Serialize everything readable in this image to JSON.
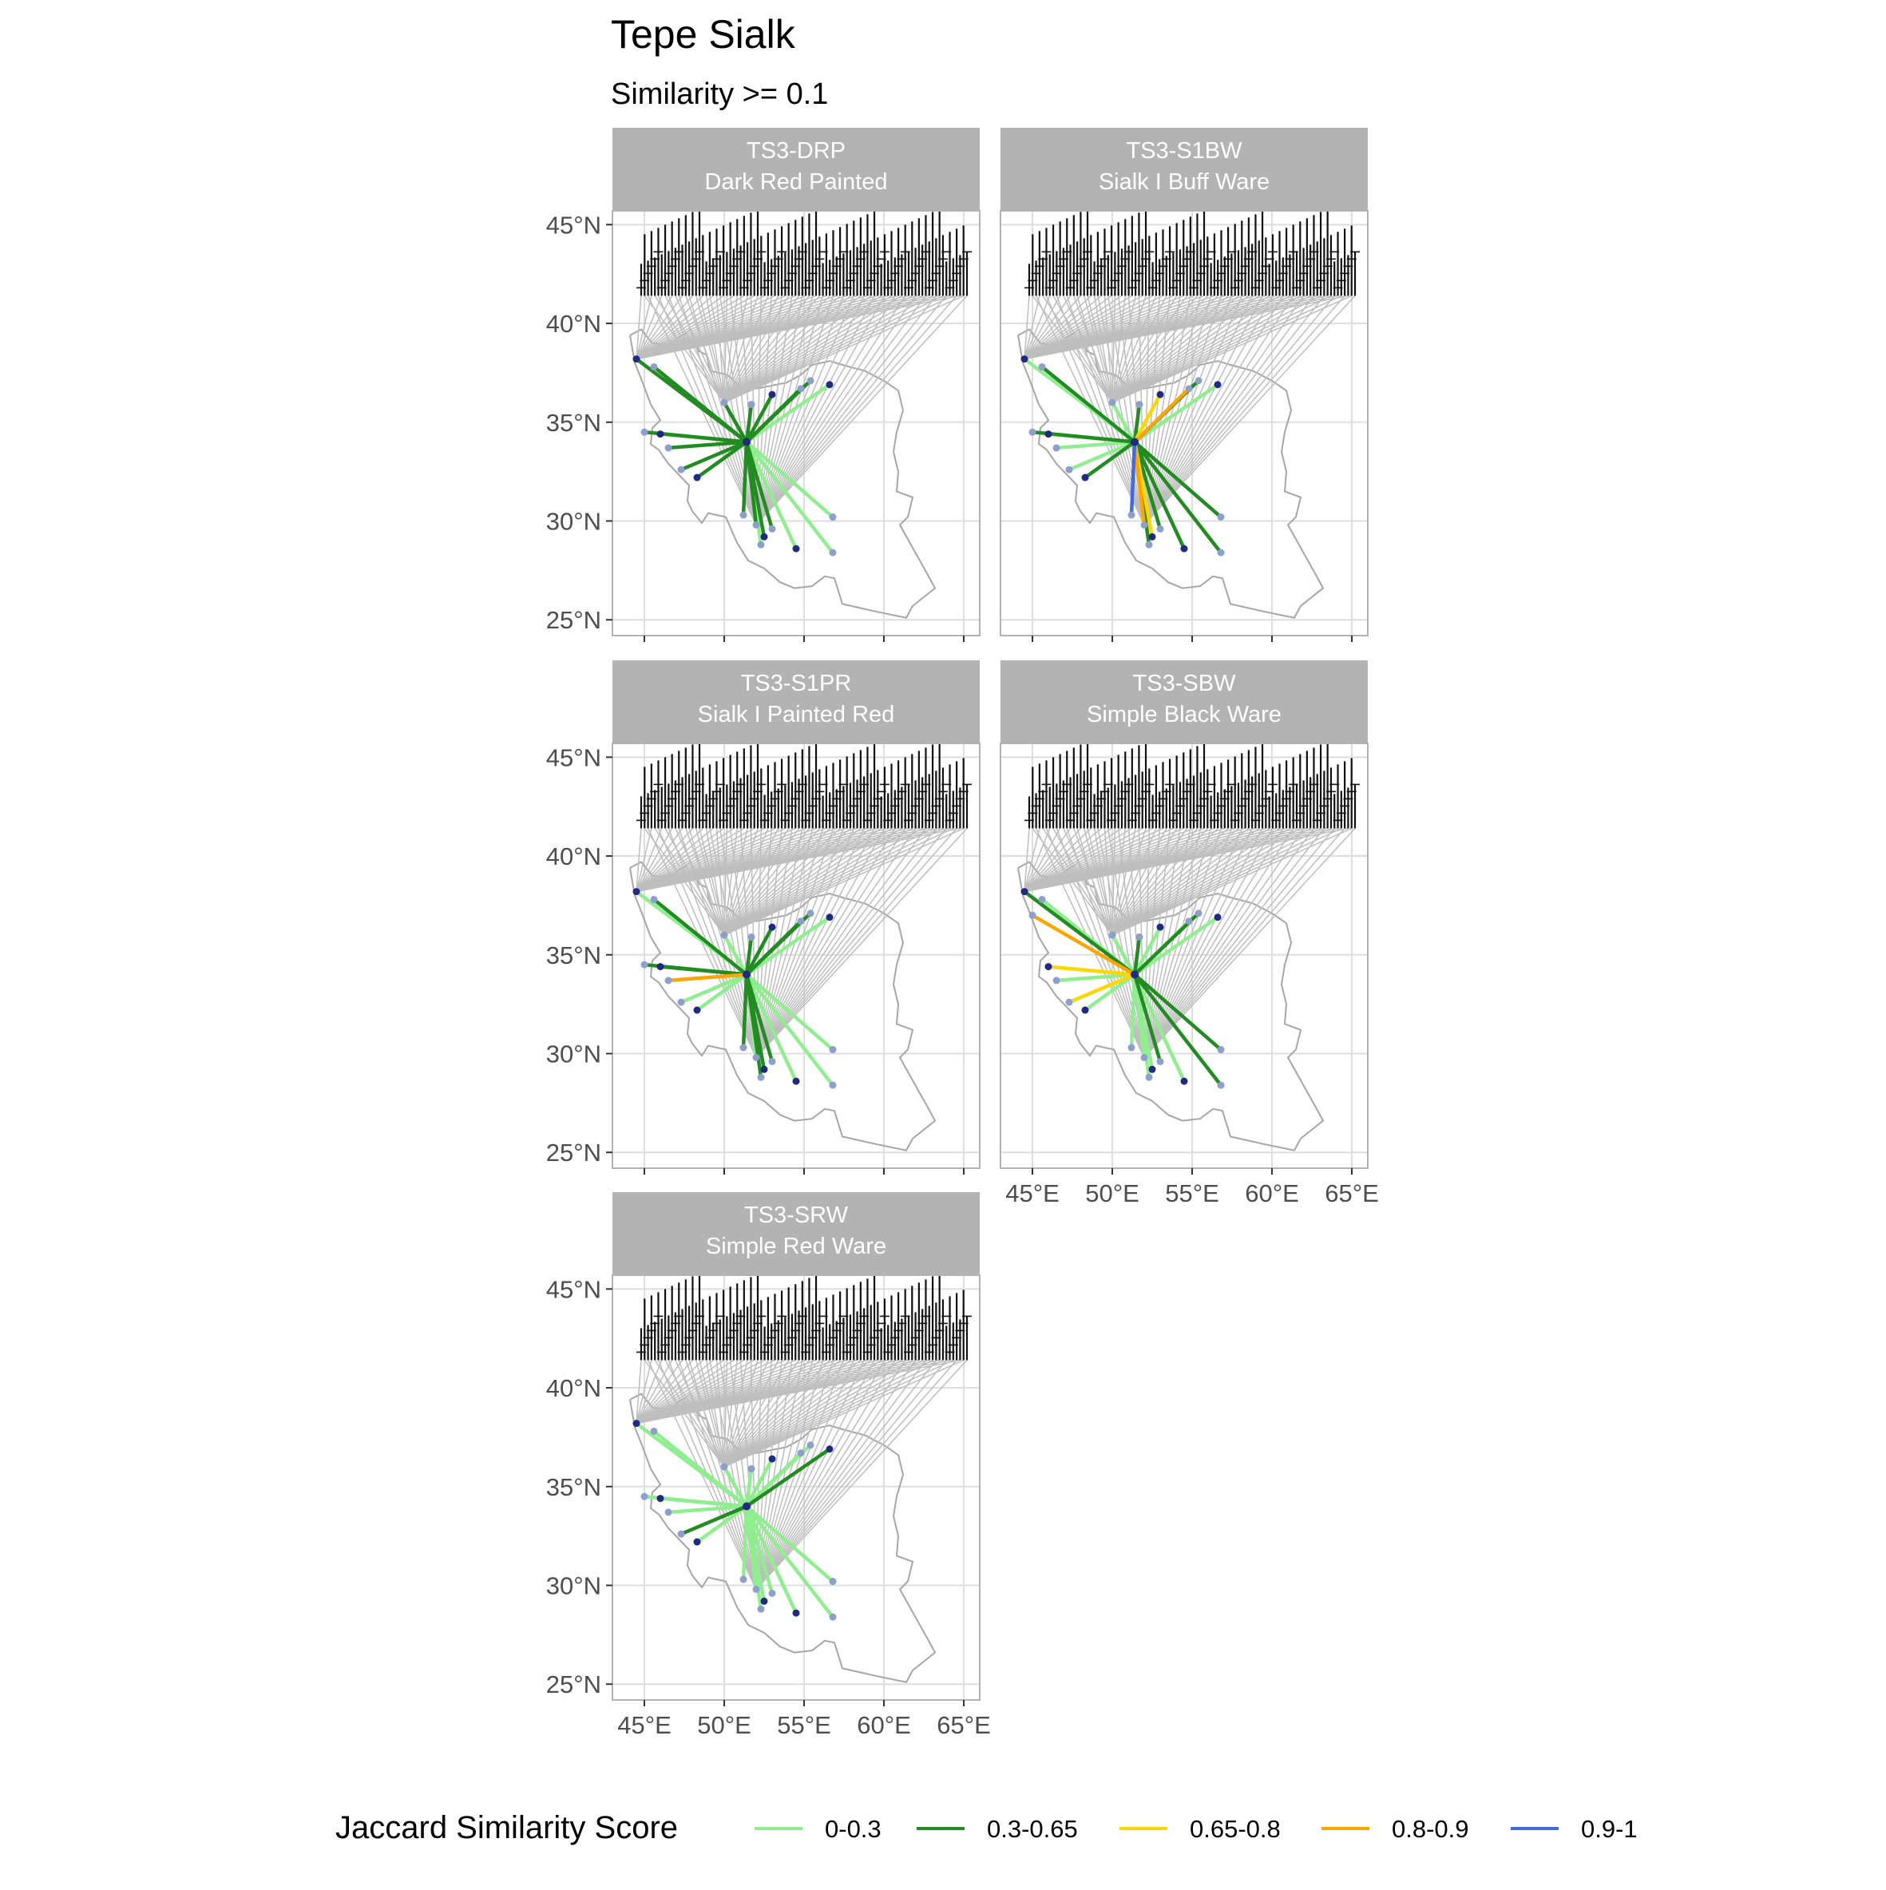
{
  "chart_data": {
    "type": "line",
    "title": "Tepe Sialk",
    "subtitle": "Similarity >= 0.1",
    "x_axis": {
      "range": [
        43,
        66
      ],
      "ticks": [
        45,
        50,
        55,
        60,
        65
      ],
      "tick_labels": [
        "45°E",
        "50°E",
        "55°E",
        "60°E",
        "65°E"
      ]
    },
    "y_axis": {
      "range": [
        24.2,
        45.7
      ],
      "ticks": [
        25,
        30,
        35,
        40,
        45
      ],
      "tick_labels": [
        "25°N",
        "30°N",
        "35°N",
        "40°N",
        "45°N"
      ]
    },
    "grid": true,
    "legend": {
      "title": "Jaccard Similarity Score",
      "placement": "bottom",
      "entries": [
        {
          "label": "0-0.3",
          "color": "#90ee90"
        },
        {
          "label": "0.3-0.65",
          "color": "#228b22"
        },
        {
          "label": "0.65-0.8",
          "color": "#ffd700"
        },
        {
          "label": "0.8-0.9",
          "color": "#ffa500"
        },
        {
          "label": "0.9-1",
          "color": "#4169e1"
        }
      ]
    },
    "colors": {
      "strip_fill": "#b3b3b3",
      "strip_text": "#ffffff",
      "panel_border": "#b3b3b3",
      "grid": "#dedede",
      "country_outline": "#a6a6a6",
      "background_links": "#bebebe",
      "site_point": "#8da0cb",
      "site_point_dark": "#1f2a80"
    },
    "focal_site": {
      "lon": 51.4,
      "lat": 34.0
    },
    "panels": [
      {
        "code": "TS3-DRP",
        "name": "Dark Red Painted",
        "links": [
          {
            "lon": 44.5,
            "lat": 38.2,
            "cls": "0.3-0.65"
          },
          {
            "lon": 45.6,
            "lat": 37.8,
            "cls": "0.3-0.65"
          },
          {
            "lon": 45.0,
            "lat": 34.5,
            "cls": "0.3-0.65"
          },
          {
            "lon": 46.0,
            "lat": 34.4,
            "cls": "0-0.3"
          },
          {
            "lon": 46.5,
            "lat": 33.7,
            "cls": "0.3-0.65"
          },
          {
            "lon": 47.3,
            "lat": 32.6,
            "cls": "0.3-0.65"
          },
          {
            "lon": 48.3,
            "lat": 32.2,
            "cls": "0.3-0.65"
          },
          {
            "lon": 50.0,
            "lat": 36.0,
            "cls": "0.3-0.65"
          },
          {
            "lon": 51.7,
            "lat": 35.9,
            "cls": "0.3-0.65"
          },
          {
            "lon": 53.0,
            "lat": 36.4,
            "cls": "0.3-0.65"
          },
          {
            "lon": 54.8,
            "lat": 36.7,
            "cls": "0.3-0.65"
          },
          {
            "lon": 55.4,
            "lat": 37.1,
            "cls": "0.3-0.65"
          },
          {
            "lon": 56.6,
            "lat": 36.9,
            "cls": "0-0.3"
          },
          {
            "lon": 51.2,
            "lat": 30.3,
            "cls": "0.3-0.65"
          },
          {
            "lon": 52.0,
            "lat": 29.8,
            "cls": "0.3-0.65"
          },
          {
            "lon": 52.5,
            "lat": 29.2,
            "cls": "0.3-0.65"
          },
          {
            "lon": 52.3,
            "lat": 28.8,
            "cls": "0-0.3"
          },
          {
            "lon": 53.0,
            "lat": 29.6,
            "cls": "0.3-0.65"
          },
          {
            "lon": 54.5,
            "lat": 28.6,
            "cls": "0-0.3"
          },
          {
            "lon": 56.8,
            "lat": 30.2,
            "cls": "0-0.3"
          },
          {
            "lon": 56.8,
            "lat": 28.4,
            "cls": "0-0.3"
          }
        ]
      },
      {
        "code": "TS3-S1BW",
        "name": "Sialk I Buff Ware",
        "links": [
          {
            "lon": 44.5,
            "lat": 38.2,
            "cls": "0-0.3"
          },
          {
            "lon": 45.6,
            "lat": 37.8,
            "cls": "0.3-0.65"
          },
          {
            "lon": 45.0,
            "lat": 34.5,
            "cls": "0.3-0.65"
          },
          {
            "lon": 46.0,
            "lat": 34.4,
            "cls": "0-0.3"
          },
          {
            "lon": 46.5,
            "lat": 33.7,
            "cls": "0-0.3"
          },
          {
            "lon": 47.3,
            "lat": 32.6,
            "cls": "0-0.3"
          },
          {
            "lon": 48.3,
            "lat": 32.2,
            "cls": "0.3-0.65"
          },
          {
            "lon": 50.0,
            "lat": 36.0,
            "cls": "0-0.3"
          },
          {
            "lon": 51.7,
            "lat": 35.9,
            "cls": "0.3-0.65"
          },
          {
            "lon": 53.0,
            "lat": 36.4,
            "cls": "0.65-0.8"
          },
          {
            "lon": 54.8,
            "lat": 36.7,
            "cls": "0.8-0.9"
          },
          {
            "lon": 55.4,
            "lat": 37.1,
            "cls": "0.3-0.65"
          },
          {
            "lon": 56.6,
            "lat": 36.9,
            "cls": "0-0.3"
          },
          {
            "lon": 51.2,
            "lat": 30.3,
            "cls": "0.9-1"
          },
          {
            "lon": 52.0,
            "lat": 29.8,
            "cls": "0.8-0.9"
          },
          {
            "lon": 52.5,
            "lat": 29.2,
            "cls": "0.65-0.8"
          },
          {
            "lon": 52.3,
            "lat": 28.8,
            "cls": "0.3-0.65"
          },
          {
            "lon": 53.0,
            "lat": 29.6,
            "cls": "0.3-0.65"
          },
          {
            "lon": 54.5,
            "lat": 28.6,
            "cls": "0.3-0.65"
          },
          {
            "lon": 56.8,
            "lat": 30.2,
            "cls": "0.3-0.65"
          },
          {
            "lon": 56.8,
            "lat": 28.4,
            "cls": "0.3-0.65"
          }
        ]
      },
      {
        "code": "TS3-S1PR",
        "name": "Sialk I Painted Red",
        "links": [
          {
            "lon": 44.5,
            "lat": 38.2,
            "cls": "0-0.3"
          },
          {
            "lon": 45.6,
            "lat": 37.8,
            "cls": "0.3-0.65"
          },
          {
            "lon": 45.0,
            "lat": 34.5,
            "cls": "0.3-0.65"
          },
          {
            "lon": 46.0,
            "lat": 34.4,
            "cls": "0.3-0.65"
          },
          {
            "lon": 46.5,
            "lat": 33.7,
            "cls": "0.8-0.9"
          },
          {
            "lon": 47.3,
            "lat": 32.6,
            "cls": "0-0.3"
          },
          {
            "lon": 48.3,
            "lat": 32.2,
            "cls": "0-0.3"
          },
          {
            "lon": 50.0,
            "lat": 36.0,
            "cls": "0-0.3"
          },
          {
            "lon": 51.7,
            "lat": 35.9,
            "cls": "0.3-0.65"
          },
          {
            "lon": 53.0,
            "lat": 36.4,
            "cls": "0.3-0.65"
          },
          {
            "lon": 54.8,
            "lat": 36.7,
            "cls": "0.3-0.65"
          },
          {
            "lon": 55.4,
            "lat": 37.1,
            "cls": "0.3-0.65"
          },
          {
            "lon": 56.6,
            "lat": 36.9,
            "cls": "0-0.3"
          },
          {
            "lon": 51.2,
            "lat": 30.3,
            "cls": "0.3-0.65"
          },
          {
            "lon": 52.0,
            "lat": 29.8,
            "cls": "0-0.3"
          },
          {
            "lon": 52.5,
            "lat": 29.2,
            "cls": "0.3-0.65"
          },
          {
            "lon": 52.3,
            "lat": 28.8,
            "cls": "0.3-0.65"
          },
          {
            "lon": 53.0,
            "lat": 29.6,
            "cls": "0.3-0.65"
          },
          {
            "lon": 54.5,
            "lat": 28.6,
            "cls": "0-0.3"
          },
          {
            "lon": 56.8,
            "lat": 30.2,
            "cls": "0-0.3"
          },
          {
            "lon": 56.8,
            "lat": 28.4,
            "cls": "0-0.3"
          }
        ]
      },
      {
        "code": "TS3-SBW",
        "name": "Simple Black Ware",
        "links": [
          {
            "lon": 44.5,
            "lat": 38.2,
            "cls": "0.3-0.65"
          },
          {
            "lon": 45.6,
            "lat": 37.8,
            "cls": "0-0.3"
          },
          {
            "lon": 45.0,
            "lat": 37.0,
            "cls": "0.8-0.9"
          },
          {
            "lon": 46.0,
            "lat": 34.4,
            "cls": "0.65-0.8"
          },
          {
            "lon": 46.5,
            "lat": 33.7,
            "cls": "0-0.3"
          },
          {
            "lon": 47.3,
            "lat": 32.6,
            "cls": "0.65-0.8"
          },
          {
            "lon": 48.3,
            "lat": 32.2,
            "cls": "0-0.3"
          },
          {
            "lon": 50.0,
            "lat": 36.0,
            "cls": "0-0.3"
          },
          {
            "lon": 51.7,
            "lat": 35.9,
            "cls": "0.3-0.65"
          },
          {
            "lon": 53.0,
            "lat": 36.4,
            "cls": "0-0.3"
          },
          {
            "lon": 54.8,
            "lat": 36.7,
            "cls": "0-0.3"
          },
          {
            "lon": 55.4,
            "lat": 37.1,
            "cls": "0.3-0.65"
          },
          {
            "lon": 56.6,
            "lat": 36.9,
            "cls": "0-0.3"
          },
          {
            "lon": 51.2,
            "lat": 30.3,
            "cls": "0-0.3"
          },
          {
            "lon": 52.0,
            "lat": 29.8,
            "cls": "0-0.3"
          },
          {
            "lon": 52.5,
            "lat": 29.2,
            "cls": "0-0.3"
          },
          {
            "lon": 52.3,
            "lat": 28.8,
            "cls": "0-0.3"
          },
          {
            "lon": 53.0,
            "lat": 29.6,
            "cls": "0.3-0.65"
          },
          {
            "lon": 54.5,
            "lat": 28.6,
            "cls": "0-0.3"
          },
          {
            "lon": 56.8,
            "lat": 30.2,
            "cls": "0.3-0.65"
          },
          {
            "lon": 56.8,
            "lat": 28.4,
            "cls": "0.3-0.65"
          }
        ]
      },
      {
        "code": "TS3-SRW",
        "name": "Simple Red Ware",
        "links": [
          {
            "lon": 44.5,
            "lat": 38.2,
            "cls": "0-0.3"
          },
          {
            "lon": 45.6,
            "lat": 37.8,
            "cls": "0-0.3"
          },
          {
            "lon": 45.0,
            "lat": 34.5,
            "cls": "0-0.3"
          },
          {
            "lon": 46.0,
            "lat": 34.4,
            "cls": "0-0.3"
          },
          {
            "lon": 46.5,
            "lat": 33.7,
            "cls": "0-0.3"
          },
          {
            "lon": 47.3,
            "lat": 32.6,
            "cls": "0.3-0.65"
          },
          {
            "lon": 48.3,
            "lat": 32.2,
            "cls": "0-0.3"
          },
          {
            "lon": 50.0,
            "lat": 36.0,
            "cls": "0-0.3"
          },
          {
            "lon": 51.7,
            "lat": 35.9,
            "cls": "0-0.3"
          },
          {
            "lon": 53.0,
            "lat": 36.4,
            "cls": "0-0.3"
          },
          {
            "lon": 54.8,
            "lat": 36.7,
            "cls": "0-0.3"
          },
          {
            "lon": 55.4,
            "lat": 37.1,
            "cls": "0-0.3"
          },
          {
            "lon": 56.6,
            "lat": 36.9,
            "cls": "0.3-0.65"
          },
          {
            "lon": 51.2,
            "lat": 30.3,
            "cls": "0-0.3"
          },
          {
            "lon": 52.0,
            "lat": 29.8,
            "cls": "0-0.3"
          },
          {
            "lon": 52.5,
            "lat": 29.2,
            "cls": "0-0.3"
          },
          {
            "lon": 52.3,
            "lat": 28.8,
            "cls": "0-0.3"
          },
          {
            "lon": 53.0,
            "lat": 29.6,
            "cls": "0-0.3"
          },
          {
            "lon": 54.5,
            "lat": 28.6,
            "cls": "0-0.3"
          },
          {
            "lon": 56.8,
            "lat": 30.2,
            "cls": "0-0.3"
          },
          {
            "lon": 56.8,
            "lat": 28.4,
            "cls": "0-0.3"
          }
        ]
      }
    ],
    "label_anchor_lat": 41.4,
    "label_anchor_lon_range": [
      44.8,
      65.2
    ],
    "label_anchor_count": 96
  }
}
